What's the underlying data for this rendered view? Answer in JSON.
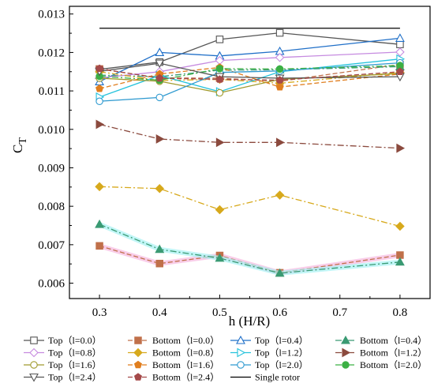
{
  "chart_data": {
    "type": "line",
    "title": "",
    "xlabel": "h (H/R)",
    "ylabel": {
      "main": "C",
      "sub": "T"
    },
    "xlim": [
      0.25,
      0.85
    ],
    "ylim": [
      0.0056,
      0.0132
    ],
    "xticks": [
      "0.3",
      "0.4",
      "0.5",
      "0.6",
      "0.7",
      "0.8"
    ],
    "yticks": [
      "0.006",
      "0.007",
      "0.008",
      "0.009",
      "0.010",
      "0.011",
      "0.012",
      "0.013"
    ],
    "grid": false,
    "legend_position": "bottom",
    "x": [
      0.3,
      0.4,
      0.5,
      0.6,
      0.8
    ],
    "series": [
      {
        "name": "Top（l=0.0）",
        "color": "#555555",
        "dash": "solid",
        "marker": "square",
        "fill": false,
        "values": [
          0.01156,
          0.01175,
          0.01234,
          0.01251,
          0.01221
        ]
      },
      {
        "name": "Bottom（l=0.0）",
        "color": "#c0704a",
        "dash": "dash",
        "marker": "square",
        "fill": true,
        "values": [
          0.01157,
          0.01134,
          0.01133,
          0.01125,
          0.01169
        ]
      },
      {
        "name": "Top（l=0.4）",
        "color": "#1f6fc8",
        "dash": "solid",
        "marker": "triangle-up",
        "fill": false,
        "values": [
          0.01124,
          0.012,
          0.01191,
          0.01203,
          0.01237
        ]
      },
      {
        "name": "Bottom（l=0.4）",
        "color": "#3a9a73",
        "dash": "dashdot",
        "marker": "triangle-up",
        "fill": true,
        "values": [
          0.01141,
          0.01137,
          0.01154,
          0.01155,
          0.01163
        ]
      },
      {
        "name": "Top（l=0.8）",
        "color": "#c68be0",
        "dash": "solid",
        "marker": "diamond",
        "fill": false,
        "values": [
          0.01134,
          0.0115,
          0.01179,
          0.01187,
          0.01201
        ]
      },
      {
        "name": "Bottom（l=0.8）",
        "color": "#d7a91c",
        "dash": "dashdot",
        "marker": "diamond",
        "fill": true,
        "values": [
          0.0115,
          0.01127,
          0.0113,
          0.0112,
          0.01148
        ]
      },
      {
        "name": "Top（l=1.2）",
        "color": "#24c2dc",
        "dash": "solid",
        "marker": "triangle-right",
        "fill": false,
        "values": [
          0.01084,
          0.0114,
          0.01098,
          0.0115,
          0.01183
        ]
      },
      {
        "name": "Bottom（l=1.2）",
        "color": "#8b4a3e",
        "dash": "dashdot",
        "marker": "triangle-right",
        "fill": true,
        "values": [
          0.01013,
          0.00975,
          0.00966,
          0.00966,
          0.00951
        ]
      },
      {
        "name": "Top（l=1.6）",
        "color": "#a09a2e",
        "dash": "solid",
        "marker": "circle",
        "fill": false,
        "values": [
          0.01133,
          0.01125,
          0.01095,
          0.0113,
          0.01145
        ]
      },
      {
        "name": "Bottom（l=1.6）",
        "color": "#e07e1f",
        "dash": "dash",
        "marker": "pentagon",
        "fill": true,
        "values": [
          0.01106,
          0.01144,
          0.01161,
          0.0111,
          0.01144
        ]
      },
      {
        "name": "Top（l=2.0）",
        "color": "#2f9ad0",
        "dash": "solid",
        "marker": "circle",
        "fill": false,
        "values": [
          0.01073,
          0.01083,
          0.01148,
          0.01152,
          0.01173
        ]
      },
      {
        "name": "Bottom（l=2.0）",
        "color": "#3cb044",
        "dash": "dashdot",
        "marker": "circle",
        "fill": true,
        "values": [
          0.01138,
          0.01128,
          0.01158,
          0.01157,
          0.01166
        ]
      },
      {
        "name": "Top（l=2.4）",
        "color": "#555555",
        "dash": "solid",
        "marker": "triangle-down",
        "fill": false,
        "values": [
          0.01151,
          0.01172,
          0.01137,
          0.01133,
          0.01137
        ]
      },
      {
        "name": "Bottom（l=2.4）",
        "color": "#a54a4a",
        "dash": "dash",
        "marker": "pentagon",
        "fill": true,
        "values": [
          0.01158,
          0.01133,
          0.0113,
          0.01128,
          0.0115
        ]
      },
      {
        "name": "Single rotor",
        "color": "#000000",
        "dash": "solid",
        "marker": "none",
        "fill": false,
        "values": [
          0.01263,
          0.01263,
          0.01263,
          0.01263,
          0.01263
        ]
      }
    ],
    "extra_series": [
      {
        "color": "#c0704a",
        "glow": "#f6b8df",
        "dash": "dash",
        "marker": "square",
        "values": [
          0.00697,
          0.00651,
          0.00672,
          0.00627,
          0.00673
        ]
      },
      {
        "color": "#3a9a73",
        "glow": "#a8f2f4",
        "dash": "dashdot",
        "marker": "triangle-up",
        "values": [
          0.00753,
          0.00688,
          0.00665,
          0.00626,
          0.00655
        ]
      },
      {
        "color": "#d7a91c",
        "glow": "",
        "dash": "dashdot",
        "marker": "diamond",
        "values": [
          0.00851,
          0.00846,
          0.00791,
          0.00829,
          0.00748
        ]
      }
    ]
  }
}
